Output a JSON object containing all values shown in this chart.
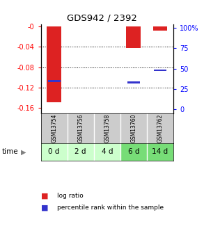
{
  "title": "GDS942 / 2392",
  "samples": [
    "GSM13754",
    "GSM13756",
    "GSM13758",
    "GSM13760",
    "GSM13762"
  ],
  "time_labels": [
    "0 d",
    "2 d",
    "4 d",
    "6 d",
    "14 d"
  ],
  "log_ratios": [
    -0.148,
    0.0,
    0.0,
    -0.042,
    -0.008
  ],
  "percentile_ranks": [
    35,
    0,
    0,
    33,
    48
  ],
  "ylim_left": [
    -0.17,
    0.005
  ],
  "ylim_right": [
    -5,
    105
  ],
  "left_yticks": [
    0.0,
    -0.04,
    -0.08,
    -0.12,
    -0.16
  ],
  "right_yticks": [
    0,
    25,
    50,
    75,
    100
  ],
  "left_yticklabels": [
    "-0",
    "-0.04",
    "-0.08",
    "-0.12",
    "-0.16"
  ],
  "right_yticklabels": [
    "0",
    "25",
    "50",
    "75",
    "100%"
  ],
  "bar_color": "#dd2222",
  "percentile_color": "#3333cc",
  "sample_bg_color": "#cccccc",
  "time_bg_colors": [
    "#ccffcc",
    "#ccffcc",
    "#ccffcc",
    "#77dd77",
    "#77dd77"
  ],
  "bar_width": 0.55,
  "fig_width": 2.93,
  "fig_height": 3.45,
  "dpi": 100
}
